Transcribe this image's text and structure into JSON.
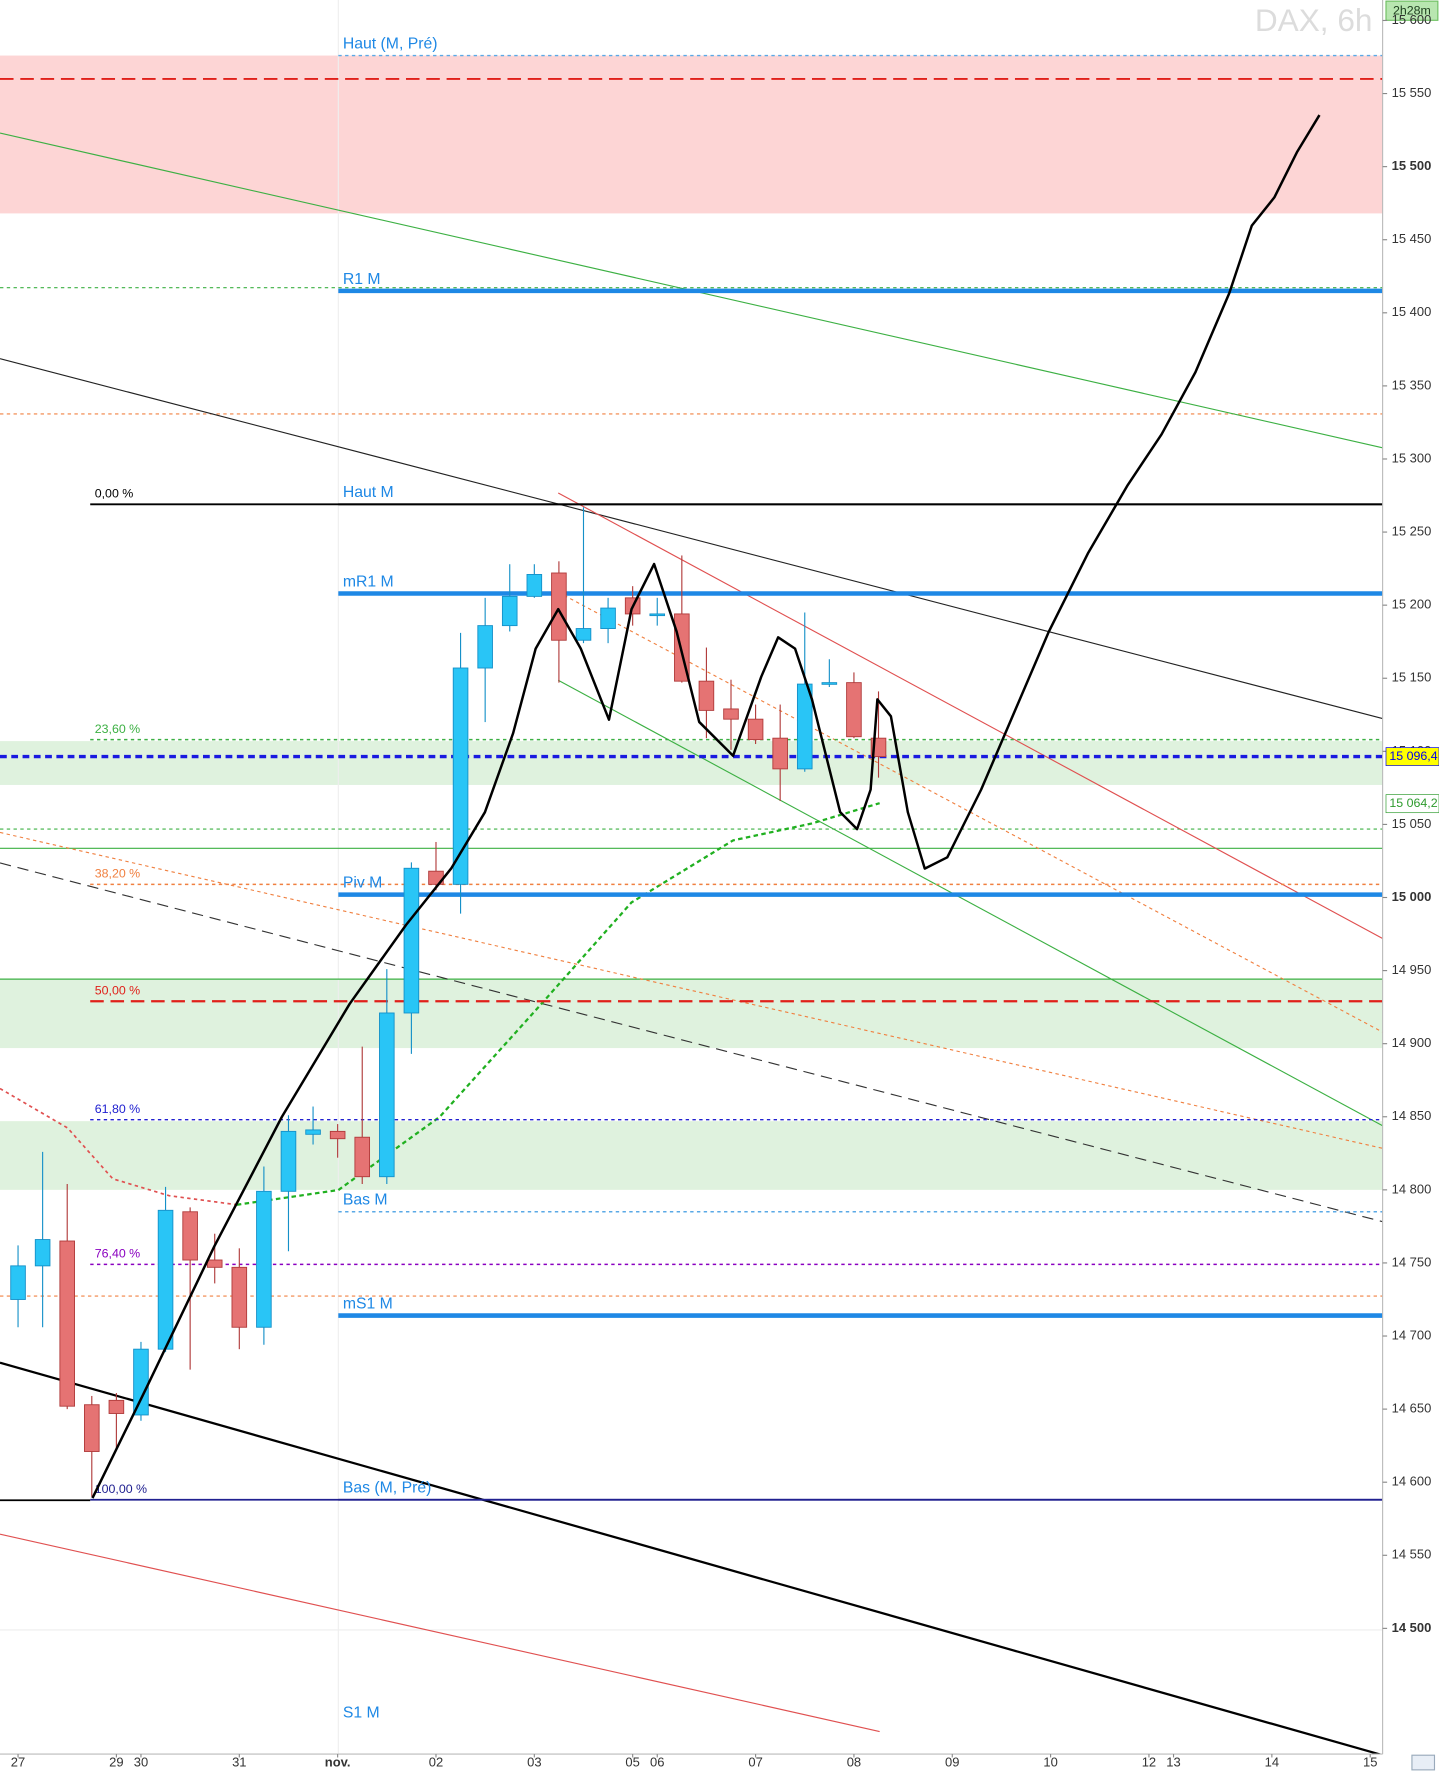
{
  "chart_data": {
    "type": "candlestick",
    "title": "DAX, 6h",
    "timer": "2h28m",
    "categories": [
      "27",
      null,
      null,
      null,
      "29",
      "30",
      null,
      null,
      null,
      "31",
      null,
      null,
      null,
      "nov.",
      null,
      null,
      null,
      "02",
      null,
      null,
      null,
      "03",
      null,
      null,
      null,
      "05",
      "06",
      null,
      null,
      null,
      "07",
      null,
      null,
      null,
      "08",
      null,
      null,
      null,
      "09",
      null,
      null,
      null,
      "10",
      null,
      null,
      null,
      "12",
      "13",
      null,
      null,
      null,
      "14",
      null,
      null,
      null,
      "15"
    ],
    "open": [
      14725,
      14748,
      14765,
      14653,
      14656,
      14646,
      14691,
      14785,
      14752,
      14747,
      14706,
      14799,
      14838,
      14840,
      14836,
      14809,
      14921,
      15018,
      15009,
      15157,
      15186,
      15206,
      15222,
      15176,
      15184,
      15205,
      15193,
      15194,
      15148,
      15129,
      15122,
      15109,
      15088,
      15146,
      15147,
      15109,
      null,
      null,
      null,
      null,
      null,
      null,
      null,
      null,
      null,
      null,
      null,
      null,
      null,
      null,
      null,
      null,
      null,
      null,
      null,
      null
    ],
    "high": [
      14762,
      14826,
      14804,
      14659,
      14661,
      14696,
      14802,
      14788,
      14770,
      14760,
      14816,
      14851,
      14857,
      14845,
      14898,
      14951,
      15024,
      15038,
      15181,
      15205,
      15228,
      15228,
      15230,
      15267,
      15205,
      15213,
      15205,
      15234,
      15171,
      15149,
      15132,
      15132,
      15195,
      15163,
      15154,
      15141,
      null,
      null,
      null,
      null,
      null,
      null,
      null,
      null,
      null,
      null,
      null,
      null,
      null,
      null,
      null,
      null,
      null,
      null,
      null,
      null
    ],
    "low": [
      14706,
      14706,
      14650,
      14590,
      14623,
      14642,
      14689,
      14677,
      14736,
      14691,
      14694,
      14758,
      14831,
      14822,
      14804,
      14804,
      14893,
      15005,
      14989,
      15120,
      15182,
      15205,
      15147,
      15174,
      15174,
      15186,
      15186,
      15147,
      15109,
      15101,
      15105,
      15066,
      15086,
      15144,
      15109,
      15082,
      null,
      null,
      null,
      null,
      null,
      null,
      null,
      null,
      null,
      null,
      null,
      null,
      null,
      null,
      null,
      null,
      null,
      null,
      null,
      null
    ],
    "close": [
      14748,
      14766,
      14652,
      14621,
      14647,
      14691,
      14786,
      14752,
      14747,
      14706,
      14799,
      14840,
      14841,
      14835,
      14809,
      14921,
      15020,
      15009,
      15157,
      15186,
      15206,
      15221,
      15176,
      15184,
      15198,
      15194,
      15194,
      15148,
      15128,
      15122,
      15108,
      15088,
      15146,
      15147,
      15110,
      15096.4,
      null,
      null,
      null,
      null,
      null,
      null,
      null,
      null,
      null,
      null,
      null,
      null,
      null,
      null,
      null,
      null,
      null,
      null,
      null,
      null
    ],
    "up_color": "#29c5f6",
    "down_color": "#e57373",
    "ylim": [
      14414,
      15614
    ],
    "yticks": [
      {
        "value": 15600,
        "label": "15 600"
      },
      {
        "value": 15550,
        "label": "15 550"
      },
      {
        "value": 15500,
        "label": "15 500"
      },
      {
        "value": 15450,
        "label": "15 450"
      },
      {
        "value": 15400,
        "label": "15 400"
      },
      {
        "value": 15350,
        "label": "15 350"
      },
      {
        "value": 15300,
        "label": "15 300"
      },
      {
        "value": 15250,
        "label": "15 250"
      },
      {
        "value": 15200,
        "label": "15 200"
      },
      {
        "value": 15150,
        "label": "15 150"
      },
      {
        "value": 15100,
        "label": "15 100"
      },
      {
        "value": 15050,
        "label": "15 050"
      },
      {
        "value": 15000,
        "label": "15 000"
      },
      {
        "value": 14950,
        "label": "14 950"
      },
      {
        "value": 14900,
        "label": "14 900"
      },
      {
        "value": 14850,
        "label": "14 850"
      },
      {
        "value": 14800,
        "label": "14 800"
      },
      {
        "value": 14750,
        "label": "14 750"
      },
      {
        "value": 14700,
        "label": "14 700"
      },
      {
        "value": 14650,
        "label": "14 650"
      },
      {
        "value": 14600,
        "label": "14 600"
      },
      {
        "value": 14550,
        "label": "14 550"
      },
      {
        "value": 14500,
        "label": "14 500"
      }
    ],
    "zones": [
      {
        "from": 15576,
        "to": 15468,
        "color": "#fdd5d5"
      },
      {
        "from": 15107,
        "to": 15077,
        "color": "#dff2de"
      },
      {
        "from": 14944,
        "to": 14897,
        "color": "#dff2de"
      },
      {
        "from": 14847,
        "to": 14800,
        "color": "#dff2de"
      }
    ],
    "pivot_label_color": "#1e88e5",
    "pivot_levels": [
      {
        "label": "Haut (M, Pré)",
        "value": 15576,
        "color": "#5aa9e6",
        "style": "dotted"
      },
      {
        "label": "R1 M",
        "value": 15415,
        "color": "#1e88e5",
        "style": "thick"
      },
      {
        "label": "Haut M",
        "value": 15269,
        "color": "#000000",
        "style": "solid"
      },
      {
        "label": "mR1 M",
        "value": 15208,
        "color": "#1e88e5",
        "style": "thick"
      },
      {
        "label": "Piv M",
        "value": 15002,
        "color": "#1e88e5",
        "style": "thick"
      },
      {
        "label": "Bas M",
        "value": 14785,
        "color": "#5aa9e6",
        "style": "dotted"
      },
      {
        "label": "mS1 M",
        "value": 14714,
        "color": "#1e88e5",
        "style": "thick"
      },
      {
        "label": "Bas (M, Pré)",
        "value": 14588,
        "color": "#202090",
        "style": "solid"
      },
      {
        "label": "S1 M",
        "value": 14434,
        "color": "#1e88e5",
        "style": "none"
      }
    ],
    "fib_levels": [
      {
        "label": "0,00 %",
        "value": 15269,
        "color": "#000000",
        "style": "solid"
      },
      {
        "label": "23,60 %",
        "value": 15108,
        "color": "#3cb043",
        "style": "dotted"
      },
      {
        "label": "38,20 %",
        "value": 15009,
        "color": "#f08040",
        "style": "dotted"
      },
      {
        "label": "50,00 %",
        "value": 14929,
        "color": "#e0201a",
        "style": "dashed"
      },
      {
        "label": "61,80 %",
        "value": 14848,
        "color": "#2020d0",
        "style": "dotted"
      },
      {
        "label": "76,40 %",
        "value": 14749,
        "color": "#8a00c0",
        "style": "dotted"
      },
      {
        "label": "100,00 %",
        "value": 14588,
        "color": "#202090",
        "style": "solid"
      }
    ],
    "price_labels": [
      {
        "value": 15096.4,
        "label": "15 096,4",
        "color": "#0000ee",
        "background": "#ffff00"
      },
      {
        "value": 15064.2,
        "label": "15 064,2",
        "color": "#2e9b2e",
        "background": "#ffffff"
      }
    ]
  }
}
